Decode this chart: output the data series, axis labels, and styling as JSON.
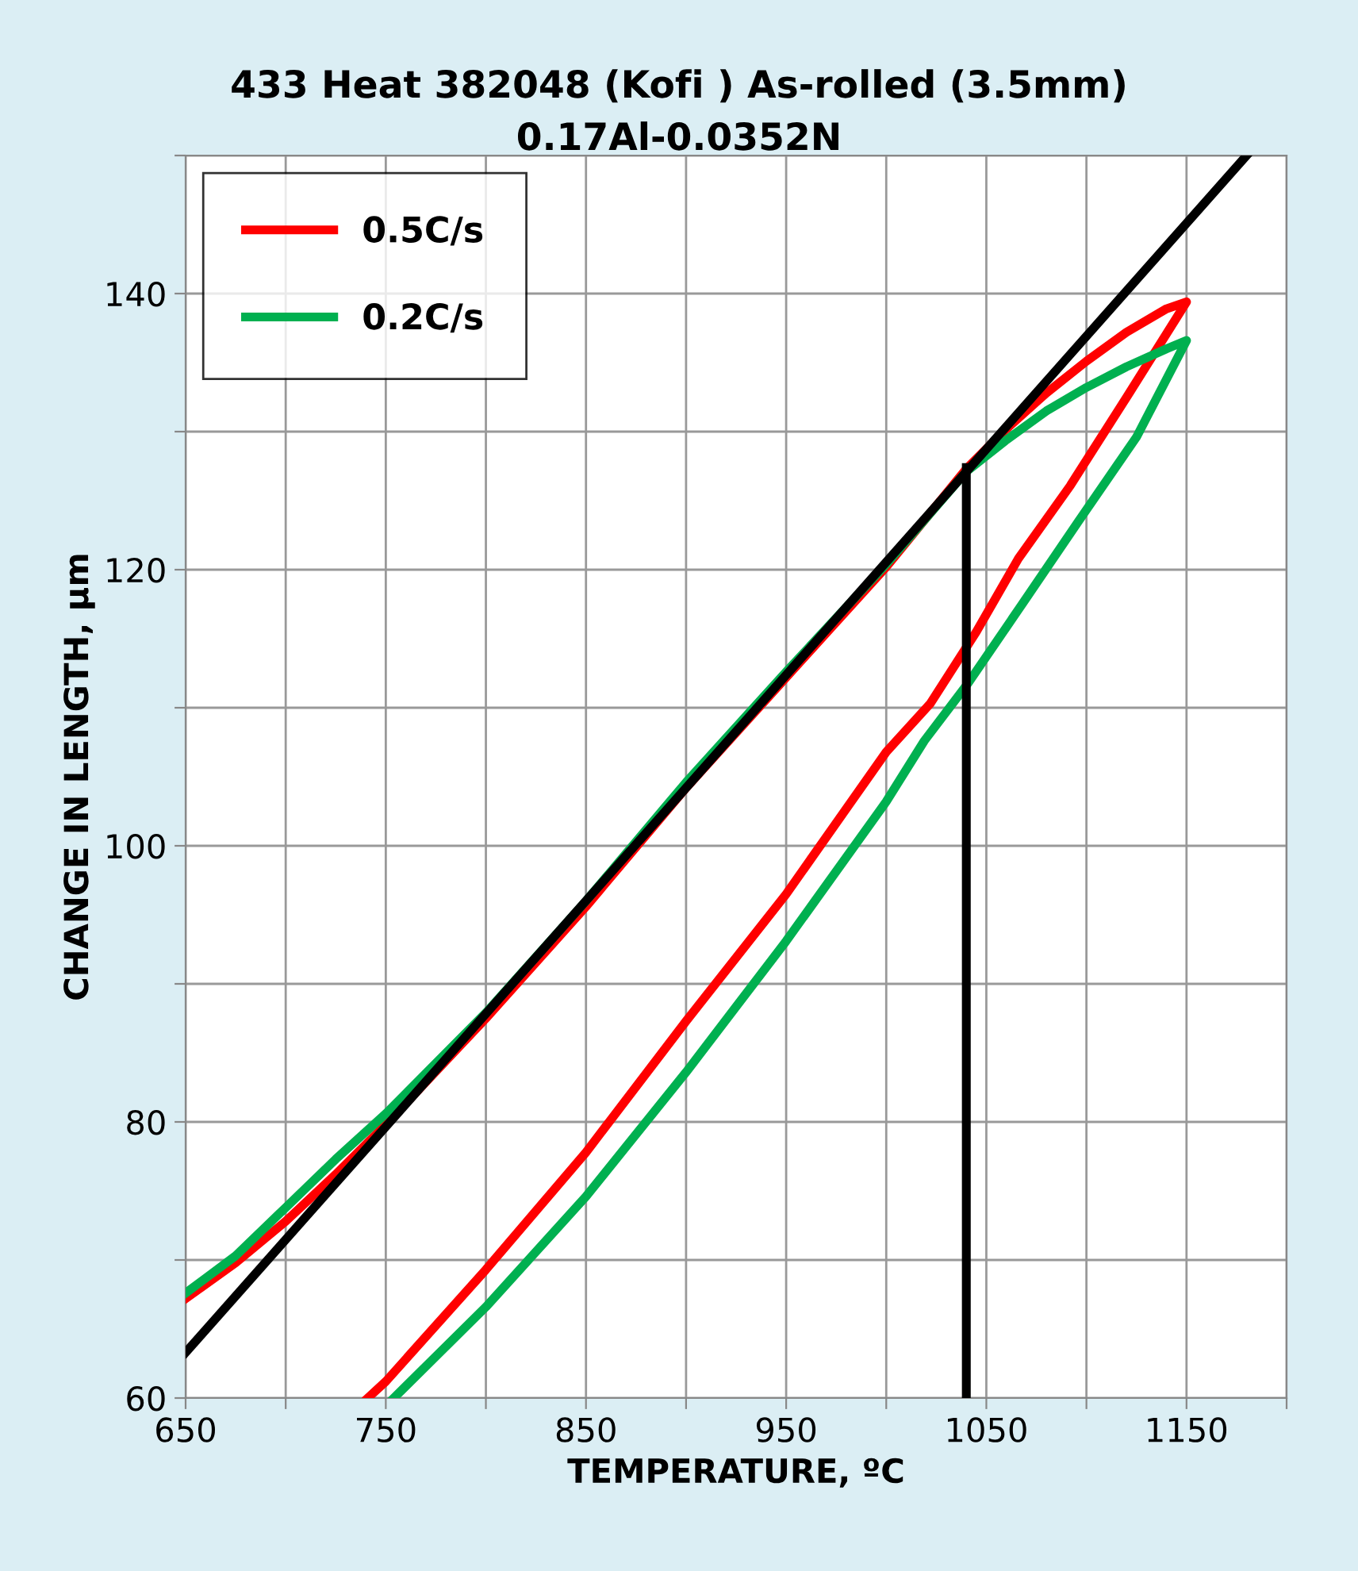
{
  "chart_data": {
    "type": "line",
    "title": "433 Heat 382048 (Kofi ) As-rolled (3.5mm)",
    "subtitle": "0.17Al-0.0352N",
    "xlabel": "TEMPERATURE, ºC",
    "ylabel": "CHANGE IN LENGTH, µm",
    "xlim": [
      650,
      1200
    ],
    "ylim": [
      60,
      150
    ],
    "xticks": [
      650,
      {
        "value": 700,
        "label": null
      },
      750,
      {
        "value": 800,
        "label": null
      },
      850,
      {
        "value": 900,
        "label": null
      },
      950,
      {
        "value": 1000,
        "label": null
      },
      1050,
      {
        "value": 1100,
        "label": null
      },
      1150,
      {
        "value": 1200,
        "label": null
      }
    ],
    "yticks": [
      60,
      {
        "value": 70,
        "label": null
      },
      80,
      {
        "value": 90,
        "label": null
      },
      100,
      {
        "value": 110,
        "label": null
      },
      120,
      {
        "value": 130,
        "label": null
      },
      140,
      {
        "value": 150,
        "label": null
      }
    ],
    "grid": true,
    "legend": "top left",
    "marker": "none",
    "line_style": "solid",
    "series": [
      {
        "name": "0.5C/s",
        "color": "#ff0000",
        "x": [
          650,
          675,
          700,
          725,
          750,
          800,
          850,
          900,
          950,
          1000,
          1040,
          1060,
          1080,
          1100,
          1120,
          1140,
          1150,
          1121,
          1092,
          1066,
          1045,
          1022,
          1000,
          950,
          900,
          850,
          800,
          750,
          741
        ],
        "values": [
          67.2,
          69.8,
          72.8,
          76.2,
          79.8,
          87.5,
          95.6,
          104.2,
          112.2,
          120.2,
          127.3,
          130.2,
          132.8,
          135.1,
          137.2,
          138.9,
          139.4,
          132.7,
          126.1,
          120.8,
          115.5,
          110.3,
          106.8,
          96.5,
          87.3,
          77.8,
          69.3,
          61.2,
          60
        ]
      },
      {
        "name": "0.2C/s",
        "color": "#00b050",
        "x": [
          650,
          675,
          700,
          725,
          750,
          800,
          850,
          900,
          950,
          1000,
          1040,
          1060,
          1080,
          1100,
          1120,
          1140,
          1150,
          1125,
          1096,
          1066,
          1041,
          1019,
          1000,
          950,
          900,
          850,
          800,
          754
        ],
        "values": [
          67.6,
          70.3,
          73.8,
          77.3,
          80.6,
          87.9,
          96.0,
          104.6,
          112.6,
          120.4,
          127.1,
          129.4,
          131.5,
          133.2,
          134.7,
          136.0,
          136.6,
          129.6,
          123.5,
          117.1,
          111.8,
          107.6,
          103.2,
          93.1,
          83.6,
          74.6,
          66.6,
          60
        ]
      },
      {
        "color": "#000000",
        "x": [
          650,
          1180
        ],
        "values": [
          63.3,
          150
        ]
      },
      {
        "color": "#000000",
        "x": [
          1040,
          1040
        ],
        "values": [
          60,
          127.4
        ]
      }
    ]
  }
}
